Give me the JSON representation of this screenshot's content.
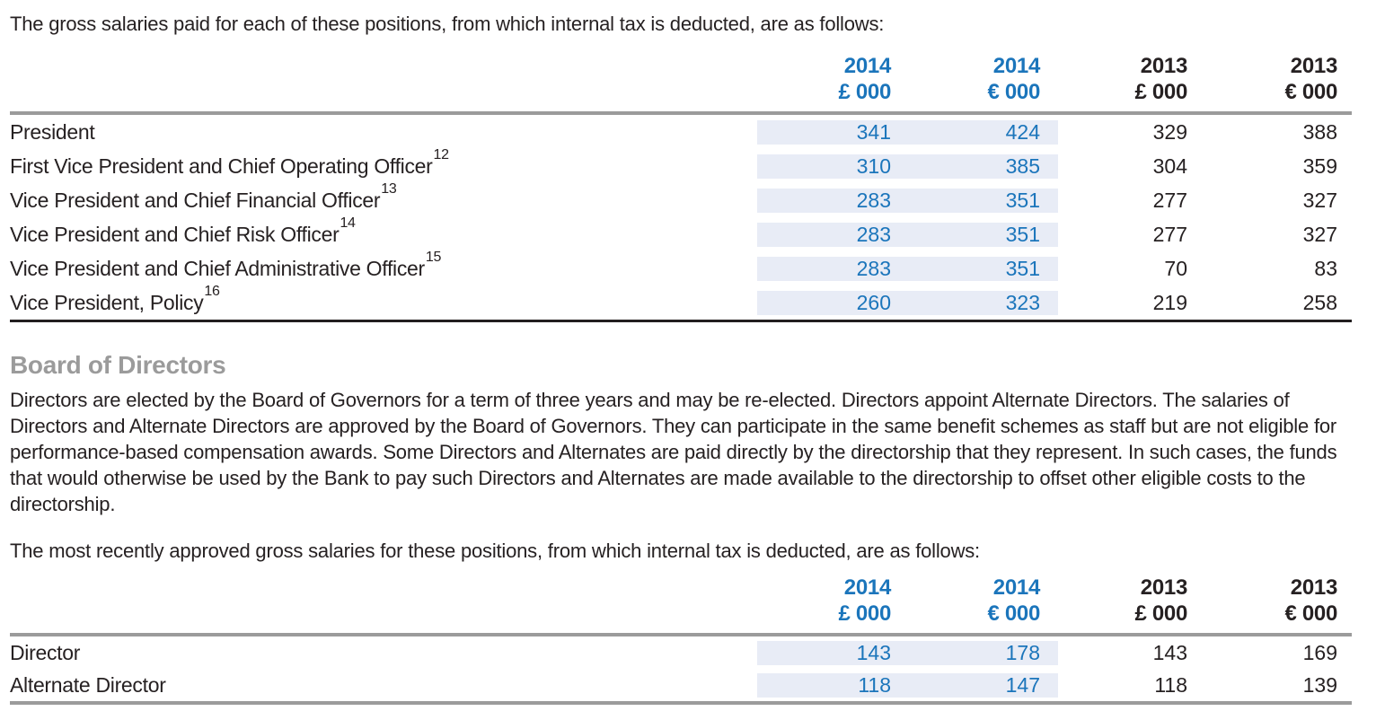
{
  "colors": {
    "accent_blue": "#1b75bb",
    "highlight_bg": "#e8ecf6",
    "text": "#262122",
    "heading_gray": "#9b9b9b",
    "border_gray": "#9b9b9b",
    "border_dark": "#231f20"
  },
  "intro1": "The gross salaries paid for each of these positions, from which internal tax is deducted, are as follows:",
  "section": {
    "heading": "Board of Directors",
    "paragraph": "Directors are elected by the Board of Governors for a term of three years and may be re-elected. Directors appoint Alternate Directors. The salaries of Directors and Alternate Directors are approved by the Board of Governors. They can participate in the same benefit schemes as staff but are not eligible for performance-based compensation awards. Some Directors and Alternates are paid directly by the directorship that they represent. In such cases, the funds that would otherwise be used by the Bank to pay such Directors and Alternates are made available to the directorship to offset other eligible costs to the directorship.",
    "intro2": "The most recently approved gross salaries for these positions, from which internal tax is deducted, are as follows:"
  },
  "tables": [
    {
      "name": "executive-gross-salaries",
      "headers": [
        {
          "year": "2014",
          "unit": "£ 000"
        },
        {
          "year": "2014",
          "unit": "€ 000"
        },
        {
          "year": "2013",
          "unit": "£ 000"
        },
        {
          "year": "2013",
          "unit": "€ 000"
        }
      ],
      "rows": [
        {
          "label": "President",
          "sup": "",
          "values": [
            "341",
            "424",
            "329",
            "388"
          ]
        },
        {
          "label": "First Vice President and Chief Operating Officer",
          "sup": "12",
          "values": [
            "310",
            "385",
            "304",
            "359"
          ]
        },
        {
          "label": "Vice President and Chief Financial Officer",
          "sup": "13",
          "values": [
            "283",
            "351",
            "277",
            "327"
          ]
        },
        {
          "label": "Vice President and Chief Risk Officer",
          "sup": "14",
          "values": [
            "283",
            "351",
            "277",
            "327"
          ]
        },
        {
          "label": "Vice President and Chief Administrative Officer",
          "sup": "15",
          "values": [
            "283",
            "351",
            "70",
            "83"
          ]
        },
        {
          "label": "Vice President, Policy",
          "sup": "16",
          "values": [
            "260",
            "323",
            "219",
            "258"
          ]
        }
      ]
    },
    {
      "name": "director-gross-salaries",
      "headers": [
        {
          "year": "2014",
          "unit": "£ 000"
        },
        {
          "year": "2014",
          "unit": "€ 000"
        },
        {
          "year": "2013",
          "unit": "£ 000"
        },
        {
          "year": "2013",
          "unit": "€ 000"
        }
      ],
      "rows": [
        {
          "label": "Director",
          "sup": "",
          "values": [
            "143",
            "178",
            "143",
            "169"
          ]
        },
        {
          "label": "Alternate Director",
          "sup": "",
          "values": [
            "118",
            "147",
            "118",
            "139"
          ]
        }
      ]
    }
  ]
}
